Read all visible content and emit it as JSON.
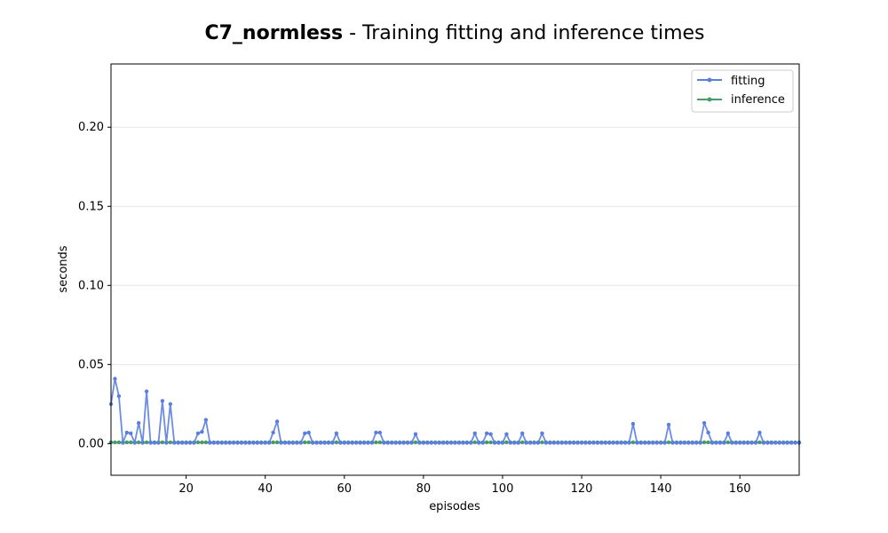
{
  "chart_data": {
    "type": "line",
    "title_bold": "C7_normless",
    "title_rest": " - Training fitting and inference times",
    "xlabel": "episodes",
    "ylabel": "seconds",
    "xlim": [
      1,
      175
    ],
    "ylim": [
      -0.02,
      0.24
    ],
    "x_ticks": [
      20,
      40,
      60,
      80,
      100,
      120,
      140,
      160
    ],
    "y_ticks": [
      0.0,
      0.05,
      0.1,
      0.15,
      0.2
    ],
    "y_tick_labels": [
      "0.00",
      "0.05",
      "0.10",
      "0.15",
      "0.20"
    ],
    "grid": "horizontal",
    "legend_position": "top-right",
    "series": [
      {
        "name": "fitting",
        "color": "#5b7fde",
        "spikes": {
          "1": 0.025,
          "2": 0.041,
          "3": 0.03,
          "5": 0.007,
          "6": 0.0065,
          "8": 0.013,
          "10": 0.033,
          "14": 0.027,
          "16": 0.025,
          "23": 0.0065,
          "24": 0.0075,
          "25": 0.015,
          "42": 0.007,
          "43": 0.014,
          "50": 0.0065,
          "51": 0.007,
          "58": 0.0065,
          "68": 0.007,
          "69": 0.007,
          "78": 0.006,
          "93": 0.0065,
          "96": 0.0065,
          "97": 0.006,
          "101": 0.006,
          "105": 0.0065,
          "110": 0.0065,
          "133": 0.0125,
          "142": 0.012,
          "151": 0.013,
          "152": 0.007,
          "157": 0.0065,
          "165": 0.007
        },
        "baseline": 0.0005
      },
      {
        "name": "inference",
        "color": "#4a9a6a",
        "baseline": 0.0008
      }
    ]
  }
}
